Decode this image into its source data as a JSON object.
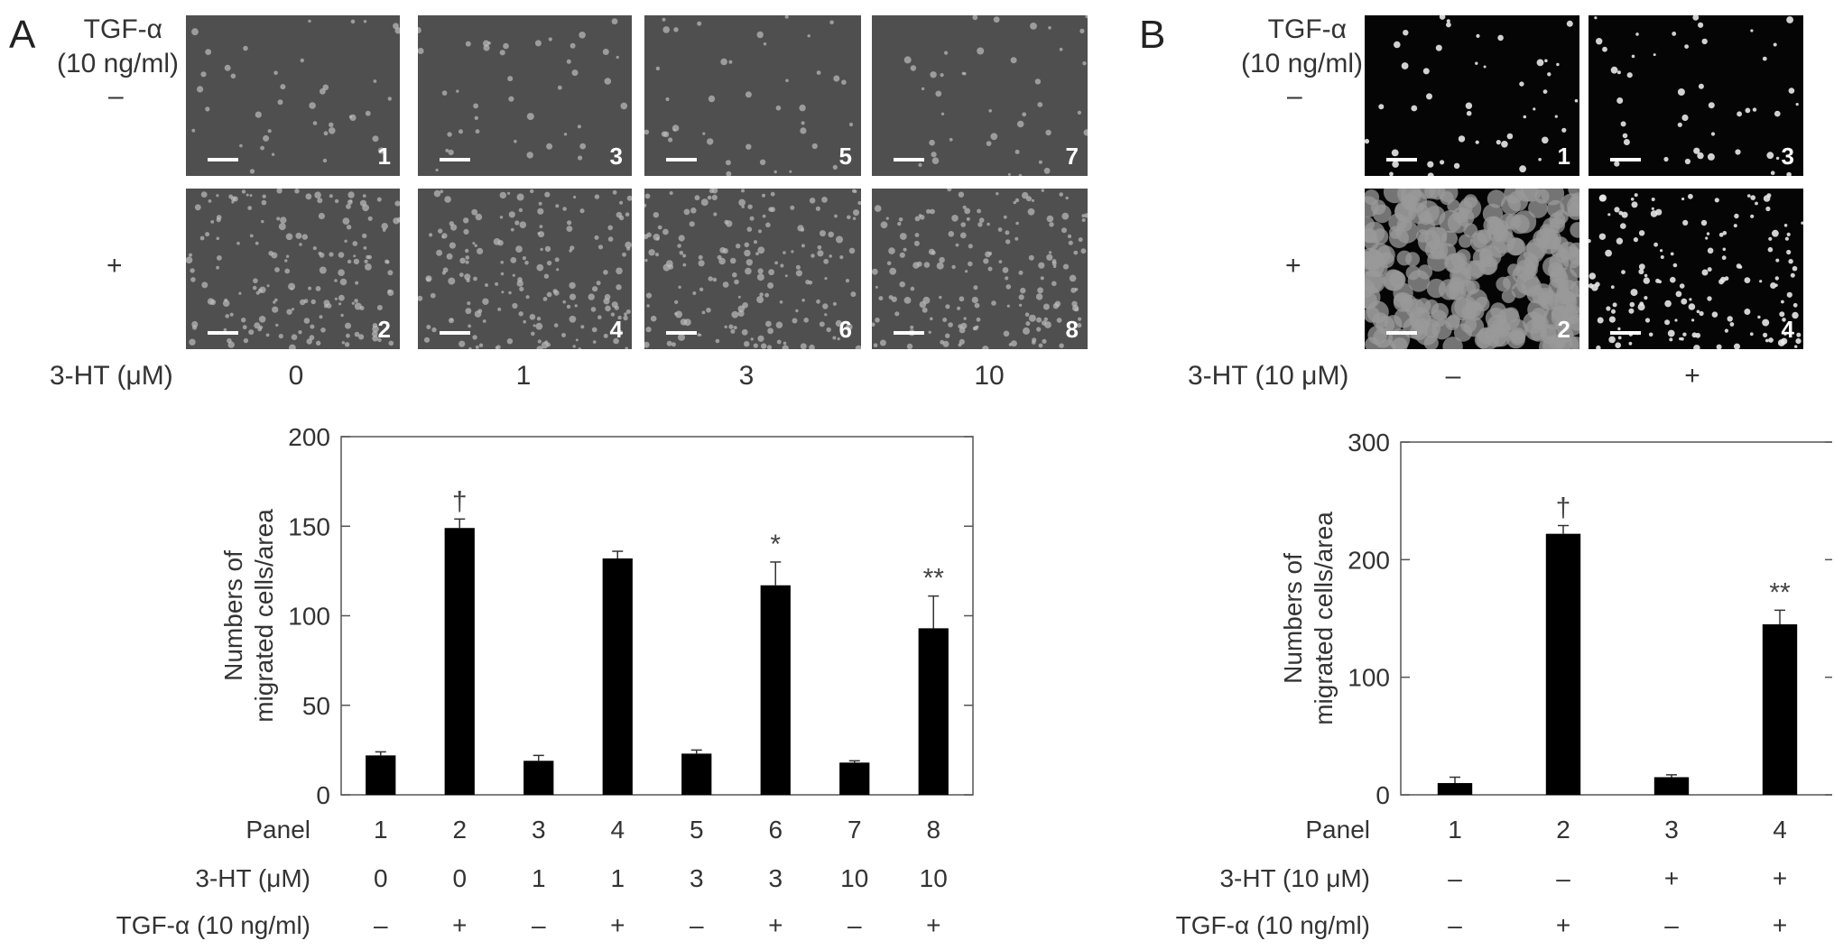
{
  "panel_a": {
    "letter": "A",
    "tgf_header_line1": "TGF-α",
    "tgf_header_line2": "(10 ng/ml)",
    "row_minus": "–",
    "row_plus": "+",
    "dose_label": "3-HT (μM)",
    "doses": [
      "0",
      "1",
      "3",
      "10"
    ],
    "image_numbers_top": [
      "1",
      "3",
      "5",
      "7"
    ],
    "image_numbers_bottom": [
      "2",
      "4",
      "6",
      "8"
    ]
  },
  "panel_b": {
    "letter": "B",
    "tgf_header_line1": "TGF-α",
    "tgf_header_line2": "(10 ng/ml)",
    "row_minus": "–",
    "row_plus": "+",
    "dose_label": "3-HT (10 μM)",
    "doses": [
      "–",
      "+"
    ],
    "image_numbers_top": [
      "1",
      "3"
    ],
    "image_numbers_bottom": [
      "2",
      "4"
    ]
  },
  "chart_data": [
    {
      "type": "bar",
      "ylabel_line1": "Numbers of",
      "ylabel_line2": "migrated cells/area",
      "ylim": [
        0,
        200
      ],
      "yticks": [
        "0",
        "50",
        "100",
        "150",
        "200"
      ],
      "categories": [
        "1",
        "2",
        "3",
        "4",
        "5",
        "6",
        "7",
        "8"
      ],
      "values": [
        22,
        149,
        19,
        132,
        23,
        117,
        18,
        93
      ],
      "errors": [
        2,
        5,
        3,
        4,
        2,
        13,
        1,
        18
      ],
      "annotations": [
        "",
        "†",
        "",
        "",
        "",
        "*",
        "",
        "**"
      ],
      "row_labels": [
        "Panel",
        "3-HT (μM)",
        "TGF-α (10 ng/ml)"
      ],
      "ht_values": [
        "0",
        "0",
        "1",
        "1",
        "3",
        "3",
        "10",
        "10"
      ],
      "tgf_values": [
        "–",
        "+",
        "–",
        "+",
        "–",
        "+",
        "–",
        "+"
      ],
      "bar_color": "#000000"
    },
    {
      "type": "bar",
      "ylabel_line1": "Numbers of",
      "ylabel_line2": "migrated cells/area",
      "ylim": [
        0,
        300
      ],
      "yticks": [
        "0",
        "100",
        "200",
        "300"
      ],
      "categories": [
        "1",
        "2",
        "3",
        "4"
      ],
      "values": [
        10,
        222,
        15,
        145
      ],
      "errors": [
        5,
        7,
        2,
        12
      ],
      "annotations": [
        "",
        "†",
        "",
        "**"
      ],
      "row_labels": [
        "Panel",
        "3-HT (10 μM)",
        "TGF-α (10 ng/ml)"
      ],
      "ht_values": [
        "–",
        "–",
        "+",
        "+"
      ],
      "tgf_values": [
        "–",
        "+",
        "–",
        "+"
      ],
      "bar_color": "#000000"
    }
  ]
}
